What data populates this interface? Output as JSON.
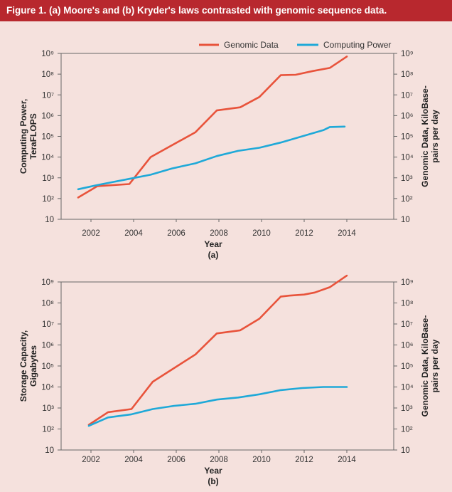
{
  "figure_title": "Figure 1. (a) Moore's and (b) Kryder's laws contrasted with genomic sequence data.",
  "colors": {
    "genomic": "#e8533b",
    "secondary": "#1fa9d8",
    "title_bg": "#b8282e",
    "background": "#f5e1dd"
  },
  "legend": {
    "genomic": "Genomic Data",
    "computing": "Computing Power"
  },
  "chart_data": [
    {
      "type": "line",
      "panel_label": "(a)",
      "xlabel": "Year",
      "ylabel_left": [
        "Computing Power,",
        "TeraFLOPS"
      ],
      "ylabel_right": [
        "Genomic Data, KiloBase-",
        "pairs per day"
      ],
      "x_ticks": [
        "2002",
        "2004",
        "2006",
        "2008",
        "2010",
        "2012",
        "2014"
      ],
      "y_ticks": [
        "10",
        "10²",
        "10³",
        "10⁴",
        "10⁵",
        "10⁶",
        "10⁷",
        "10⁸",
        "10⁹"
      ],
      "xlim": [
        2000.6,
        2016.2
      ],
      "ylim_log10": [
        1,
        9
      ],
      "y_scale": "log",
      "series": [
        {
          "name": "Genomic Data",
          "x": [
            2001.4,
            2002.3,
            2003.8,
            2004.8,
            2006.9,
            2007.9,
            2009.0,
            2009.9,
            2010.9,
            2011.6,
            2012.4,
            2013.2,
            2014.0
          ],
          "log10_y": [
            2.05,
            2.6,
            2.7,
            4.0,
            5.2,
            6.25,
            6.4,
            6.9,
            7.95,
            7.97,
            8.15,
            8.3,
            8.85
          ]
        },
        {
          "name": "Computing Power",
          "x": [
            2001.4,
            2002.3,
            2003.8,
            2004.8,
            2005.8,
            2006.9,
            2007.9,
            2008.9,
            2009.9,
            2010.9,
            2011.9,
            2012.9,
            2013.2,
            2013.9
          ],
          "log10_y": [
            2.45,
            2.65,
            2.95,
            3.15,
            3.45,
            3.7,
            4.05,
            4.3,
            4.45,
            4.7,
            5.0,
            5.3,
            5.45,
            5.47
          ]
        }
      ]
    },
    {
      "type": "line",
      "panel_label": "(b)",
      "xlabel": "Year",
      "ylabel_left": [
        "Storage Capacity,",
        "Gigabytes"
      ],
      "ylabel_right": [
        "Genomic Data, KiloBase-",
        "pairs per day"
      ],
      "x_ticks": [
        "2002",
        "2004",
        "2006",
        "2008",
        "2010",
        "2012",
        "2014"
      ],
      "y_ticks": [
        "10",
        "10²",
        "10³",
        "10⁴",
        "10⁵",
        "10⁶",
        "10⁷",
        "10⁸",
        "10⁹"
      ],
      "xlim": [
        2000.6,
        2016.2
      ],
      "ylim_log10": [
        1,
        9
      ],
      "y_scale": "log",
      "series": [
        {
          "name": "Genomic Data",
          "x": [
            2001.9,
            2002.8,
            2003.9,
            2004.9,
            2006.9,
            2007.9,
            2009.0,
            2009.9,
            2010.9,
            2011.3,
            2012.0,
            2012.5,
            2013.2,
            2014.0
          ],
          "log10_y": [
            2.2,
            2.8,
            2.95,
            4.25,
            5.55,
            6.55,
            6.7,
            7.25,
            8.3,
            8.35,
            8.4,
            8.5,
            8.75,
            9.3
          ]
        },
        {
          "name": "Storage Capacity",
          "x": [
            2001.9,
            2002.8,
            2003.9,
            2004.9,
            2005.9,
            2006.9,
            2007.9,
            2008.9,
            2009.9,
            2010.9,
            2011.9,
            2012.9,
            2014.0
          ],
          "log10_y": [
            2.15,
            2.55,
            2.7,
            2.95,
            3.1,
            3.2,
            3.4,
            3.5,
            3.65,
            3.85,
            3.95,
            4.0,
            4.0
          ]
        }
      ]
    }
  ]
}
